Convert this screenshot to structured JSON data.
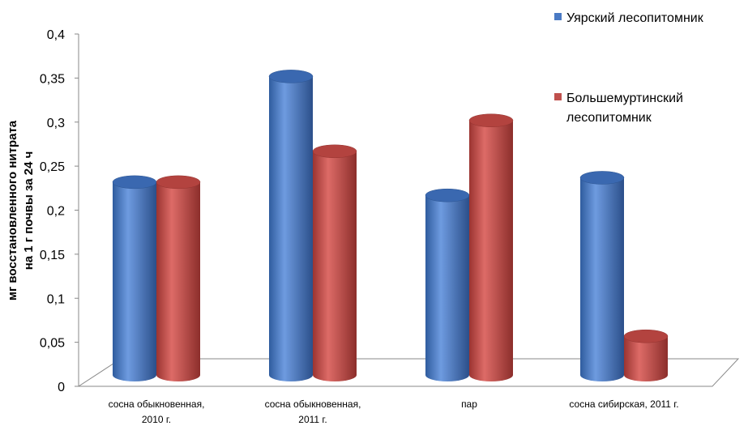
{
  "chart_data": {
    "type": "bar",
    "title": "",
    "xlabel": "",
    "ylabel_lines": [
      "мг восстановленного нитрата",
      "на 1 г почвы за 24 ч"
    ],
    "ylim": [
      0,
      0.4
    ],
    "yticks": [
      "0",
      "0,05",
      "0,1",
      "0,15",
      "0,2",
      "0,25",
      "0,3",
      "0,35",
      "0,4"
    ],
    "categories": [
      [
        "сосна обыкновенная,",
        "2010 г."
      ],
      [
        "сосна обыкновенная,",
        "2011 г."
      ],
      [
        "пар"
      ],
      [
        "сосна сибирская, 2011 г."
      ]
    ],
    "series": [
      {
        "name": "Уярский лесопитомник",
        "name_lines": [
          "Уярский лесопитомник"
        ],
        "color": "#4a7ac4",
        "values": [
          0.23,
          0.35,
          0.215,
          0.235
        ]
      },
      {
        "name": "Большемуртинский лесопитомник",
        "name_lines": [
          "Большемуртинский",
          "лесопитомник"
        ],
        "color": "#c0504d",
        "values": [
          0.23,
          0.265,
          0.3,
          0.055
        ]
      }
    ],
    "grid": false,
    "legend_position": "top-right",
    "style": "3d-cylinder"
  }
}
